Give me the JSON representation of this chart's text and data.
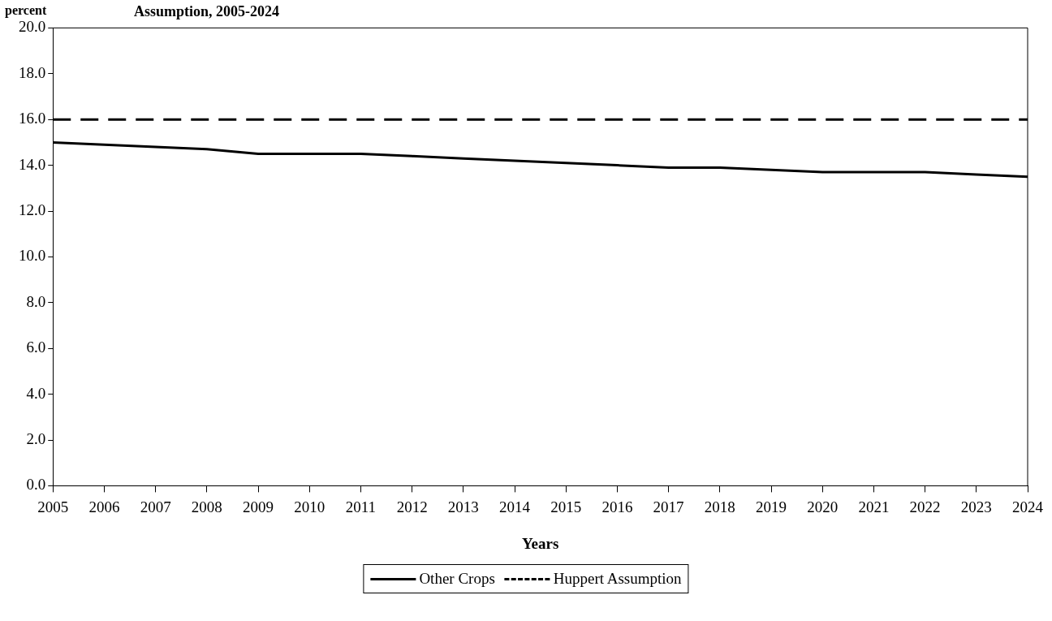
{
  "chart_data": {
    "type": "line",
    "title": "Assumption, 2005-2024",
    "ylabel": "percent",
    "xlabel": "Years",
    "categories": [
      "2005",
      "2006",
      "2007",
      "2008",
      "2009",
      "2010",
      "2011",
      "2012",
      "2013",
      "2014",
      "2015",
      "2016",
      "2017",
      "2018",
      "2019",
      "2020",
      "2021",
      "2022",
      "2023",
      "2024"
    ],
    "series": [
      {
        "name": "Other Crops",
        "color": "#000000",
        "line_style": "solid",
        "values": [
          15.0,
          14.9,
          14.8,
          14.7,
          14.5,
          14.5,
          14.5,
          14.4,
          14.3,
          14.2,
          14.1,
          14.0,
          13.9,
          13.9,
          13.8,
          13.7,
          13.7,
          13.7,
          13.6,
          13.5
        ]
      },
      {
        "name": "Huppert Assumption",
        "color": "#000000",
        "line_style": "dashed",
        "values": [
          16.0,
          16.0,
          16.0,
          16.0,
          16.0,
          16.0,
          16.0,
          16.0,
          16.0,
          16.0,
          16.0,
          16.0,
          16.0,
          16.0,
          16.0,
          16.0,
          16.0,
          16.0,
          16.0,
          16.0
        ]
      }
    ],
    "ylim": [
      0,
      20
    ],
    "yticks": [
      {
        "value": 0,
        "label": "0.0"
      },
      {
        "value": 2,
        "label": "2.0"
      },
      {
        "value": 4,
        "label": "4.0"
      },
      {
        "value": 6,
        "label": "6.0"
      },
      {
        "value": 8,
        "label": "8.0"
      },
      {
        "value": 10,
        "label": "10.0"
      },
      {
        "value": 12,
        "label": "12.0"
      },
      {
        "value": 14,
        "label": "14.0"
      },
      {
        "value": 16,
        "label": "16.0"
      },
      {
        "value": 18,
        "label": "18.0"
      },
      {
        "value": 20,
        "label": "20.0"
      }
    ],
    "grid": false,
    "legend": "bottom",
    "marker": "none"
  }
}
